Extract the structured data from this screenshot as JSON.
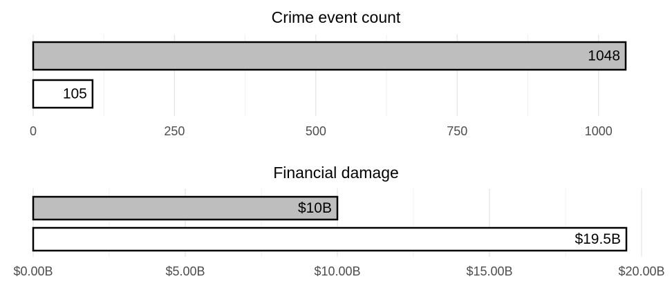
{
  "chart_data": [
    {
      "type": "barh",
      "title": "Crime event count",
      "categories": [
        null,
        null
      ],
      "values": [
        1048,
        105
      ],
      "colors": [
        "#bebebe",
        "#ffffff"
      ],
      "xlim": [
        0,
        1048
      ],
      "xticks": [
        0,
        250,
        500,
        750,
        1000
      ],
      "grid": true
    },
    {
      "type": "barh",
      "title": "Financial damage",
      "categories": [
        null,
        null
      ],
      "values": [
        10,
        19.5
      ],
      "value_labels": [
        "$10B",
        "$19.5B"
      ],
      "colors": [
        "#bebebe",
        "#ffffff"
      ],
      "xlim": [
        0,
        20
      ],
      "xticks": [
        {
          "value": 0,
          "label": "$0.00B"
        },
        {
          "value": 5,
          "label": "$5.00B"
        },
        {
          "value": 10,
          "label": "$10.00B"
        },
        {
          "value": 15,
          "label": "$15.00B"
        },
        {
          "value": 20,
          "label": "$20.00B"
        }
      ],
      "grid": true
    }
  ]
}
